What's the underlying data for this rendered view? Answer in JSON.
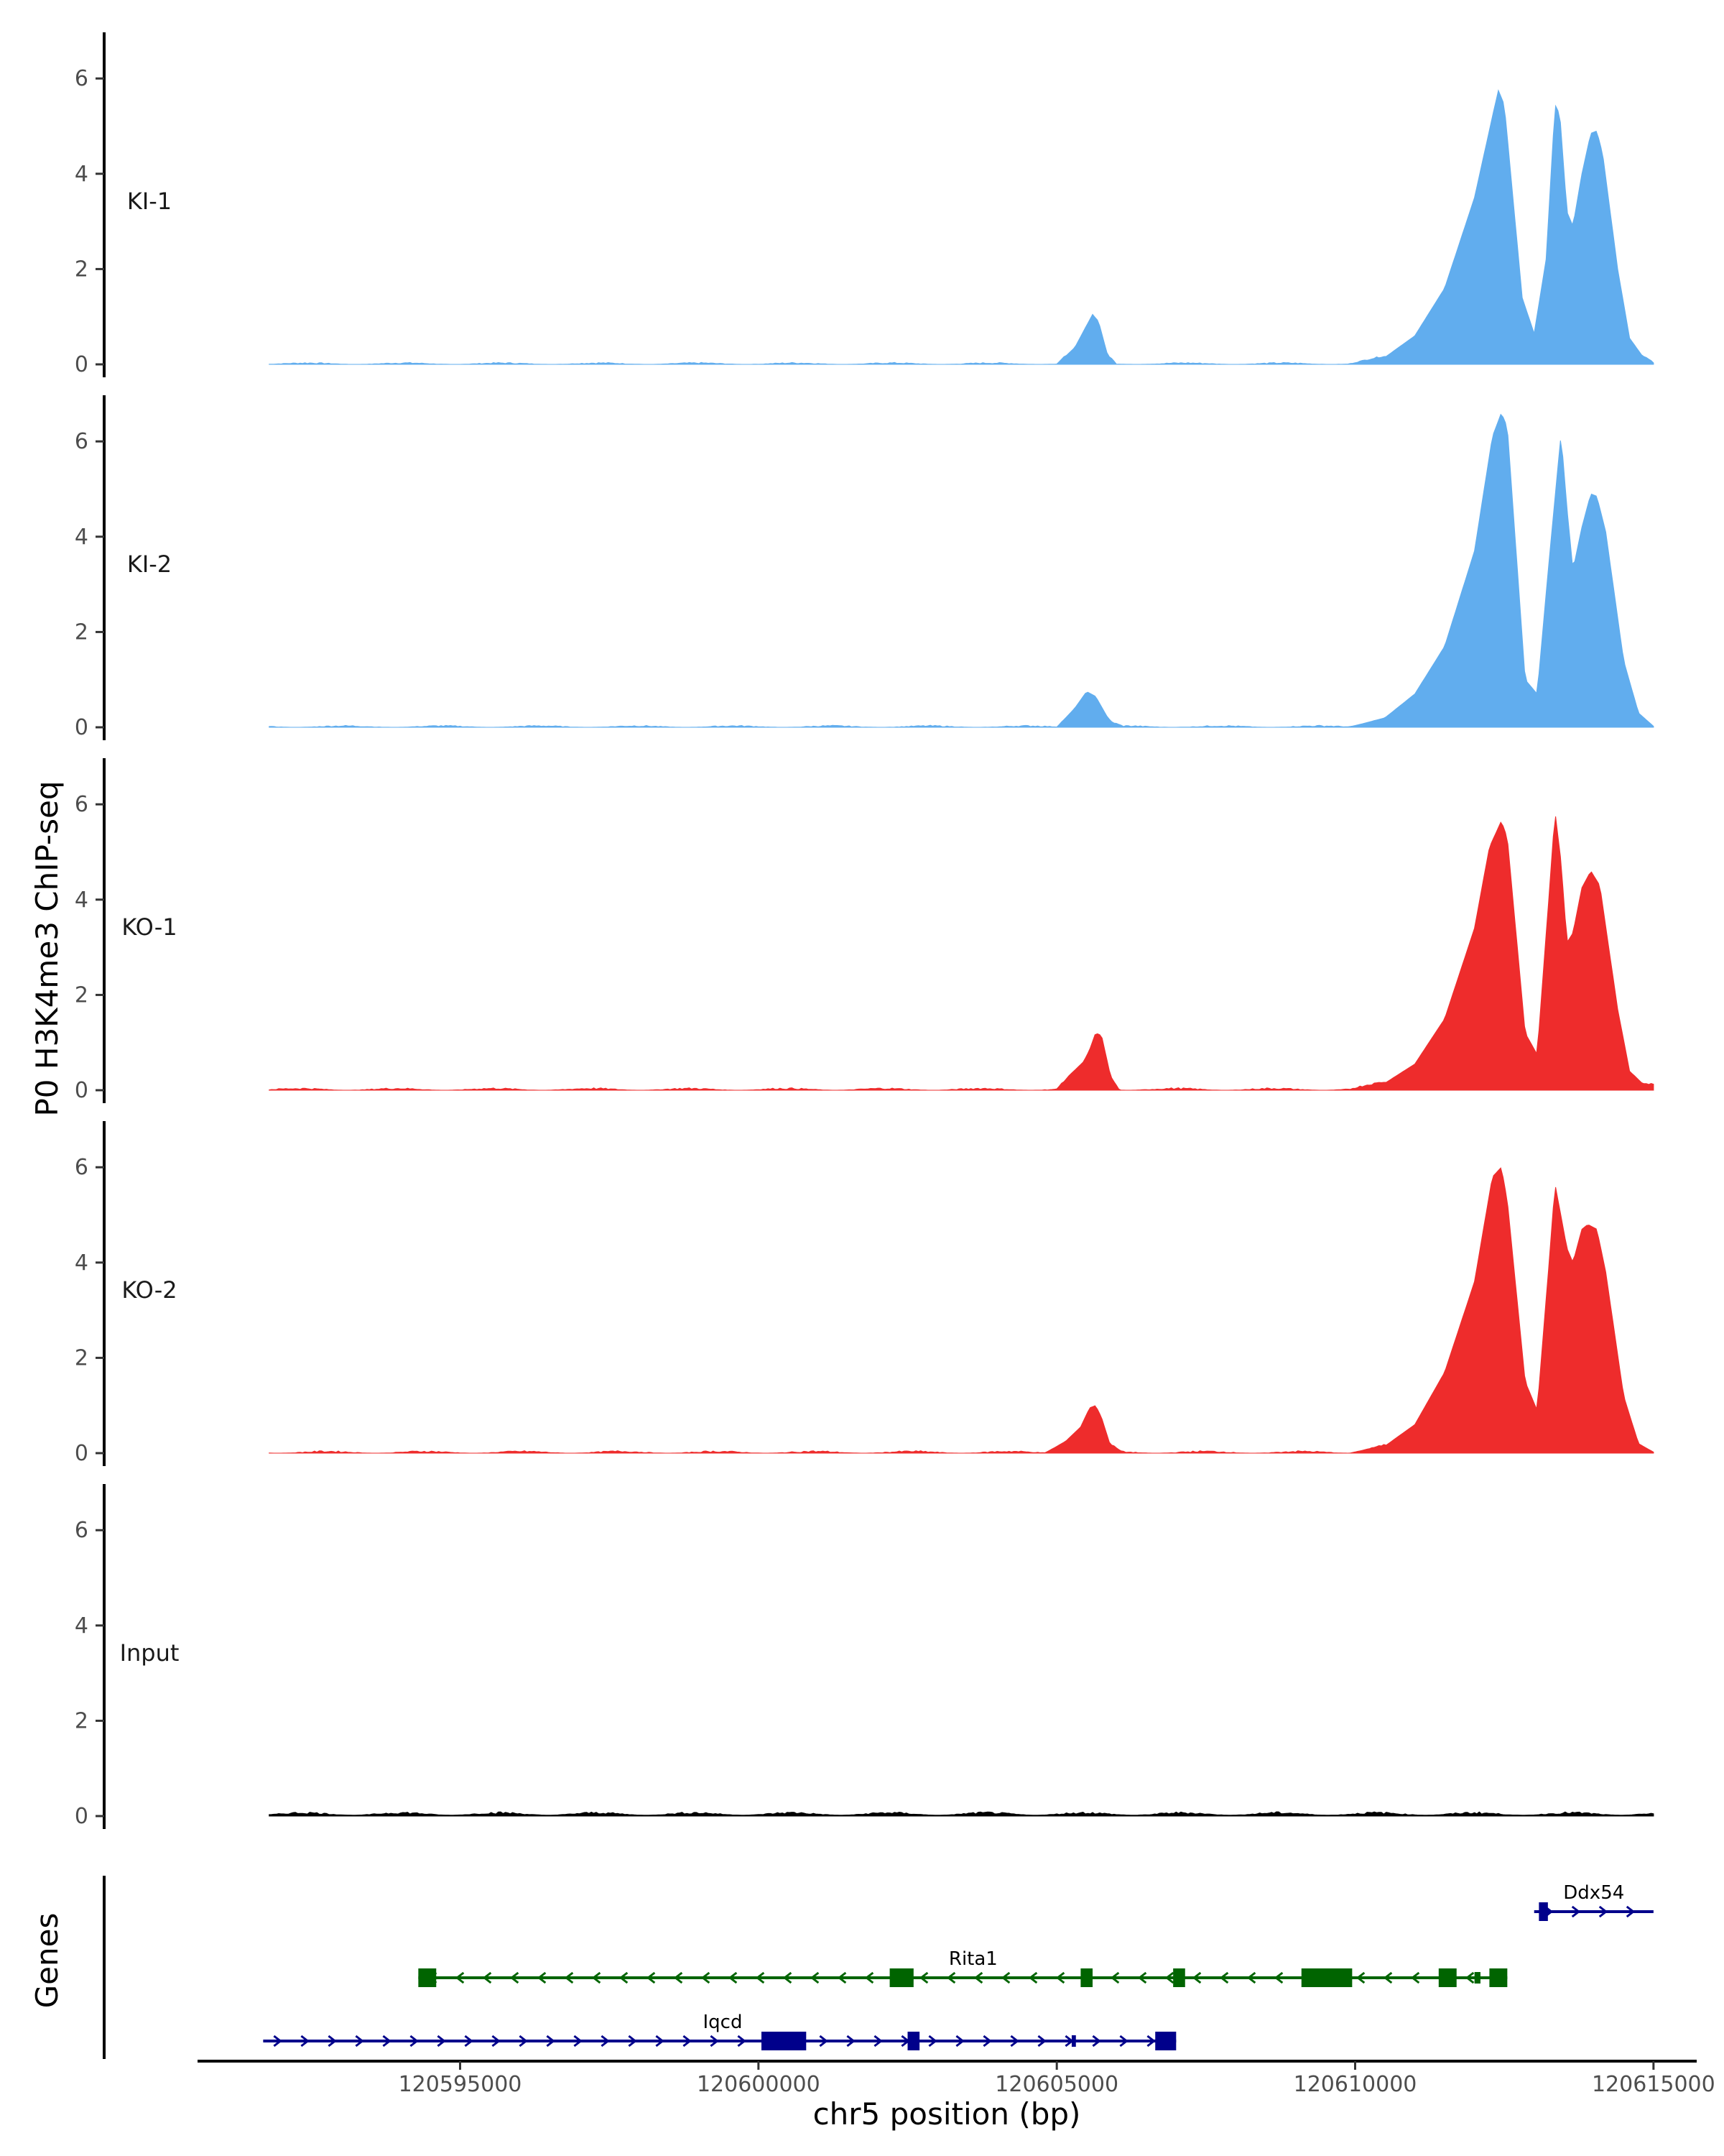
{
  "chart_data": {
    "type": "area",
    "title": "",
    "ylabel": "P0 H3K4me3 ChIP-seq",
    "xlabel": "chr5 position (bp)",
    "xlim": [
      120590600,
      120615700
    ],
    "ylim": [
      0,
      6.9
    ],
    "yticks": [
      0,
      2,
      4,
      6
    ],
    "xticks": [
      120595000,
      120600000,
      120605000,
      120610000,
      120615000
    ],
    "xtick_labels": [
      "120595000",
      "120600000",
      "120605000",
      "120610000",
      "120615000"
    ],
    "data_range": [
      120591800,
      120615000
    ],
    "tracks": [
      {
        "name": "KI-1",
        "color": "#61ADEE",
        "noise": 0.035,
        "points": [
          [
            120591800,
            0
          ],
          [
            120605000,
            0
          ],
          [
            120605300,
            0.35
          ],
          [
            120605450,
            0.7
          ],
          [
            120605600,
            1.05
          ],
          [
            120605700,
            0.9
          ],
          [
            120605850,
            0.2
          ],
          [
            120606000,
            0
          ],
          [
            120609900,
            0
          ],
          [
            120610500,
            0.15
          ],
          [
            120611000,
            0.6
          ],
          [
            120611500,
            1.6
          ],
          [
            120612000,
            3.5
          ],
          [
            120612300,
            5.2
          ],
          [
            120612400,
            5.75
          ],
          [
            120612500,
            5.45
          ],
          [
            120612800,
            1.4
          ],
          [
            120613000,
            0.65
          ],
          [
            120613200,
            2.2
          ],
          [
            120613350,
            5.45
          ],
          [
            120613430,
            5.25
          ],
          [
            120613550,
            3.2
          ],
          [
            120613650,
            2.9
          ],
          [
            120613800,
            4.0
          ],
          [
            120613950,
            4.85
          ],
          [
            120614050,
            4.9
          ],
          [
            120614150,
            4.4
          ],
          [
            120614400,
            2.0
          ],
          [
            120614600,
            0.55
          ],
          [
            120614800,
            0.2
          ],
          [
            120615000,
            0.02
          ]
        ]
      },
      {
        "name": "KI-2",
        "color": "#61ADEE",
        "noise": 0.035,
        "points": [
          [
            120591800,
            0
          ],
          [
            120605000,
            0
          ],
          [
            120605300,
            0.4
          ],
          [
            120605500,
            0.75
          ],
          [
            120605650,
            0.65
          ],
          [
            120605900,
            0.1
          ],
          [
            120606100,
            0
          ],
          [
            120609900,
            0
          ],
          [
            120610500,
            0.2
          ],
          [
            120611000,
            0.7
          ],
          [
            120611500,
            1.7
          ],
          [
            120612000,
            3.7
          ],
          [
            120612300,
            6.1
          ],
          [
            120612450,
            6.6
          ],
          [
            120612550,
            6.3
          ],
          [
            120612850,
            1.0
          ],
          [
            120613050,
            0.7
          ],
          [
            120613250,
            3.5
          ],
          [
            120613450,
            6.15
          ],
          [
            120613550,
            4.6
          ],
          [
            120613650,
            3.3
          ],
          [
            120613800,
            4.2
          ],
          [
            120613950,
            4.9
          ],
          [
            120614050,
            4.85
          ],
          [
            120614200,
            4.1
          ],
          [
            120614500,
            1.4
          ],
          [
            120614750,
            0.3
          ],
          [
            120615000,
            0.02
          ]
        ]
      },
      {
        "name": "KO-1",
        "color": "#EE2C2C",
        "noise": 0.045,
        "points": [
          [
            120591800,
            0
          ],
          [
            120605000,
            0
          ],
          [
            120605200,
            0.3
          ],
          [
            120605450,
            0.6
          ],
          [
            120605550,
            0.85
          ],
          [
            120605650,
            1.2
          ],
          [
            120605750,
            1.15
          ],
          [
            120605900,
            0.3
          ],
          [
            120606050,
            0
          ],
          [
            120609900,
            0
          ],
          [
            120610500,
            0.15
          ],
          [
            120611000,
            0.55
          ],
          [
            120611500,
            1.5
          ],
          [
            120612000,
            3.4
          ],
          [
            120612250,
            5.1
          ],
          [
            120612450,
            5.65
          ],
          [
            120612550,
            5.3
          ],
          [
            120612850,
            1.2
          ],
          [
            120613050,
            0.75
          ],
          [
            120613250,
            4.1
          ],
          [
            120613350,
            5.85
          ],
          [
            120613450,
            4.8
          ],
          [
            120613550,
            3.1
          ],
          [
            120613650,
            3.3
          ],
          [
            120613800,
            4.25
          ],
          [
            120613950,
            4.6
          ],
          [
            120614100,
            4.3
          ],
          [
            120614400,
            1.7
          ],
          [
            120614600,
            0.4
          ],
          [
            120614850,
            0.1
          ],
          [
            120615000,
            0.1
          ]
        ]
      },
      {
        "name": "KO-2",
        "color": "#EE2C2C",
        "noise": 0.045,
        "points": [
          [
            120591800,
            0
          ],
          [
            120604800,
            0
          ],
          [
            120605150,
            0.25
          ],
          [
            120605400,
            0.55
          ],
          [
            120605550,
            0.95
          ],
          [
            120605650,
            1.0
          ],
          [
            120605750,
            0.75
          ],
          [
            120605900,
            0.15
          ],
          [
            120606100,
            0
          ],
          [
            120609900,
            0
          ],
          [
            120610500,
            0.15
          ],
          [
            120611000,
            0.6
          ],
          [
            120611500,
            1.7
          ],
          [
            120612000,
            3.6
          ],
          [
            120612300,
            5.8
          ],
          [
            120612450,
            6.0
          ],
          [
            120612550,
            5.3
          ],
          [
            120612850,
            1.5
          ],
          [
            120613050,
            0.9
          ],
          [
            120613250,
            4.0
          ],
          [
            120613350,
            5.65
          ],
          [
            120613550,
            4.3
          ],
          [
            120613650,
            4.0
          ],
          [
            120613800,
            4.7
          ],
          [
            120613900,
            4.8
          ],
          [
            120614050,
            4.7
          ],
          [
            120614200,
            3.8
          ],
          [
            120614500,
            1.2
          ],
          [
            120614750,
            0.2
          ],
          [
            120615000,
            0.02
          ]
        ]
      },
      {
        "name": "Input",
        "color": "#000000",
        "noise": 0.06,
        "points": [
          [
            120591800,
            0.02
          ],
          [
            120615000,
            0.02
          ]
        ]
      }
    ],
    "genes_label": "Genes",
    "genes": [
      {
        "name": "Ddx54",
        "strand": "+",
        "color": "#00008B",
        "row": 0,
        "start": 120613000,
        "end": 120615000,
        "label_pos": 120614000,
        "exons": [
          [
            120613080,
            120613230,
            "tall"
          ]
        ]
      },
      {
        "name": "Rita1",
        "strand": "-",
        "color": "#006400",
        "row": 1,
        "start": 120594300,
        "end": 120612550,
        "label_pos": 120603600,
        "exons": [
          [
            120594300,
            120594600,
            "tall"
          ],
          [
            120602200,
            120602600,
            "tall"
          ],
          [
            120605400,
            120605600,
            "tall"
          ],
          [
            120606950,
            120607150,
            "tall"
          ],
          [
            120609100,
            120609950,
            "tall"
          ],
          [
            120611400,
            120611700,
            "tall"
          ],
          [
            120612000,
            120612100,
            "short"
          ],
          [
            120612250,
            120612550,
            "tall"
          ]
        ]
      },
      {
        "name": "Iqcd",
        "strand": "+",
        "color": "#00008B",
        "row": 2,
        "start": 120591700,
        "end": 120607000,
        "label_pos": 120599400,
        "exons": [
          [
            120600050,
            120600800,
            "tall"
          ],
          [
            120602500,
            120602700,
            "tall"
          ],
          [
            120605250,
            120605320,
            "short"
          ],
          [
            120606650,
            120607000,
            "tall"
          ]
        ]
      }
    ]
  }
}
